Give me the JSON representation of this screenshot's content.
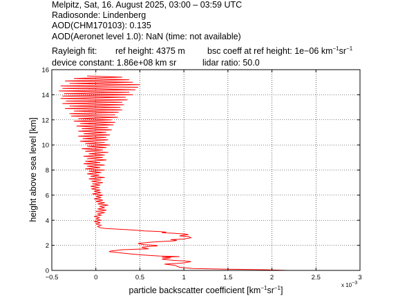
{
  "header": {
    "line1": "Melpitz, Sat, 16. August 2025, 03:00 – 03:59 UTC",
    "line2": "Radiosonde: Lindenberg",
    "line3": "AOD(CHM170103): 0.135",
    "line4": "AOD(Aeronet level 1.0): NaN   (time: not available)",
    "rayleigh_label": "Rayleigh fit:",
    "ref_height": "ref height: 4375 m",
    "bsc_coeff_prefix": "bsc coeff at ref height: 1e−06 km",
    "bsc_coeff_exp1": "−1",
    "bsc_coeff_mid": "sr",
    "bsc_coeff_exp2": "−1",
    "device_constant": "device constant: 1.86e+08 km sr",
    "lidar_ratio": "lidar ratio: 50.0"
  },
  "chart_data": {
    "type": "line",
    "xlabel": "particle backscatter coefficient [km−1sr−1]",
    "xlabel_parts": {
      "prefix": "particle backscatter coefficient [km",
      "exp1": "−1",
      "mid": "sr",
      "exp2": "−1",
      "suffix": "]"
    },
    "ylabel": "height above sea level [km]",
    "x_scale_note": "x 10",
    "x_scale_exp": "−3",
    "xlim": [
      -0.5,
      3
    ],
    "ylim": [
      0,
      16
    ],
    "xticks": [
      -0.5,
      0,
      0.5,
      1,
      1.5,
      2,
      2.5,
      3
    ],
    "xtick_labels": [
      "−0.5",
      "0",
      "0.5",
      "1",
      "1.5",
      "2",
      "2.5",
      "3"
    ],
    "yticks": [
      0,
      2,
      4,
      6,
      8,
      10,
      12,
      14,
      16
    ],
    "ytick_labels": [
      "0",
      "2",
      "4",
      "6",
      "8",
      "10",
      "12",
      "14",
      "16"
    ],
    "grid": true,
    "line_color": "#ff0000",
    "series": [
      {
        "points": [
          [
            2.18,
            0.0
          ],
          [
            1.95,
            0.05
          ],
          [
            1.5,
            0.1
          ],
          [
            1.1,
            0.15
          ],
          [
            0.95,
            0.25
          ],
          [
            0.9,
            0.4
          ],
          [
            0.78,
            0.5
          ],
          [
            0.9,
            0.55
          ],
          [
            1.0,
            0.6
          ],
          [
            1.08,
            0.7
          ],
          [
            1.02,
            0.75
          ],
          [
            0.88,
            0.8
          ],
          [
            0.8,
            0.85
          ],
          [
            0.75,
            0.9
          ],
          [
            0.85,
            1.0
          ],
          [
            0.75,
            1.05
          ],
          [
            0.95,
            1.1
          ],
          [
            0.72,
            1.15
          ],
          [
            0.6,
            1.2
          ],
          [
            0.5,
            1.25
          ],
          [
            0.42,
            1.3
          ],
          [
            0.3,
            1.38
          ],
          [
            0.22,
            1.45
          ],
          [
            0.15,
            1.5
          ],
          [
            0.18,
            1.55
          ],
          [
            0.3,
            1.65
          ],
          [
            0.5,
            1.7
          ],
          [
            0.6,
            1.72
          ],
          [
            0.55,
            1.78
          ],
          [
            0.52,
            1.85
          ],
          [
            0.6,
            1.9
          ],
          [
            0.7,
            1.95
          ],
          [
            0.68,
            2.0
          ],
          [
            0.55,
            2.05
          ],
          [
            0.5,
            2.1
          ],
          [
            0.48,
            2.15
          ],
          [
            0.55,
            2.2
          ],
          [
            0.62,
            2.25
          ],
          [
            0.72,
            2.3
          ],
          [
            0.88,
            2.35
          ],
          [
            0.92,
            2.4
          ],
          [
            0.85,
            2.45
          ],
          [
            1.0,
            2.5
          ],
          [
            1.08,
            2.6
          ],
          [
            1.05,
            2.7
          ],
          [
            0.95,
            2.75
          ],
          [
            0.98,
            2.8
          ],
          [
            1.05,
            2.85
          ],
          [
            1.02,
            2.9
          ],
          [
            0.9,
            2.95
          ],
          [
            0.75,
            3.0
          ],
          [
            0.8,
            3.05
          ],
          [
            0.72,
            3.1
          ],
          [
            0.55,
            3.15
          ],
          [
            0.45,
            3.2
          ],
          [
            0.35,
            3.25
          ],
          [
            0.22,
            3.3
          ],
          [
            0.1,
            3.35
          ],
          [
            0.05,
            3.4
          ],
          [
            0.02,
            3.5
          ],
          [
            0.06,
            3.6
          ],
          [
            0.0,
            3.7
          ],
          [
            0.05,
            3.8
          ],
          [
            -0.02,
            3.9
          ],
          [
            0.06,
            4.0
          ],
          [
            0.0,
            4.1
          ],
          [
            0.04,
            4.2
          ],
          [
            -0.02,
            4.3
          ],
          [
            0.06,
            4.4
          ],
          [
            0.02,
            4.5
          ],
          [
            0.1,
            4.6
          ],
          [
            0.0,
            4.7
          ],
          [
            0.12,
            4.8
          ],
          [
            0.02,
            4.9
          ],
          [
            0.1,
            5.0
          ],
          [
            0.04,
            5.1
          ],
          [
            0.14,
            5.2
          ],
          [
            0.02,
            5.3
          ],
          [
            0.1,
            5.4
          ],
          [
            0.0,
            5.5
          ],
          [
            0.08,
            5.6
          ],
          [
            -0.02,
            5.7
          ],
          [
            0.06,
            5.8
          ],
          [
            0.0,
            5.9
          ],
          [
            0.08,
            6.0
          ],
          [
            -0.04,
            6.1
          ],
          [
            0.06,
            6.2
          ],
          [
            -0.02,
            6.3
          ],
          [
            0.05,
            6.4
          ],
          [
            -0.05,
            6.5
          ],
          [
            0.04,
            6.6
          ],
          [
            -0.06,
            6.7
          ],
          [
            0.05,
            6.8
          ],
          [
            -0.04,
            6.9
          ],
          [
            0.08,
            7.0
          ],
          [
            -0.05,
            7.1
          ],
          [
            0.06,
            7.2
          ],
          [
            -0.08,
            7.3
          ],
          [
            0.1,
            7.4
          ],
          [
            -0.06,
            7.5
          ],
          [
            0.04,
            7.6
          ],
          [
            -0.1,
            7.7
          ],
          [
            0.06,
            7.8
          ],
          [
            -0.08,
            7.9
          ],
          [
            0.1,
            8.0
          ],
          [
            -0.12,
            8.1
          ],
          [
            0.05,
            8.2
          ],
          [
            -0.1,
            8.3
          ],
          [
            0.1,
            8.4
          ],
          [
            -0.14,
            8.5
          ],
          [
            0.05,
            8.6
          ],
          [
            -0.12,
            8.7
          ],
          [
            0.12,
            8.8
          ],
          [
            -0.1,
            8.9
          ],
          [
            0.08,
            9.0
          ],
          [
            -0.14,
            9.1
          ],
          [
            0.1,
            9.2
          ],
          [
            -0.08,
            9.3
          ],
          [
            0.14,
            9.4
          ],
          [
            -0.12,
            9.5
          ],
          [
            0.08,
            9.6
          ],
          [
            -0.16,
            9.7
          ],
          [
            0.12,
            9.8
          ],
          [
            -0.1,
            9.9
          ],
          [
            0.16,
            10.0
          ],
          [
            -0.12,
            10.1
          ],
          [
            0.1,
            10.2
          ],
          [
            -0.18,
            10.3
          ],
          [
            0.14,
            10.4
          ],
          [
            -0.15,
            10.5
          ],
          [
            0.12,
            10.6
          ],
          [
            -0.2,
            10.7
          ],
          [
            0.16,
            10.8
          ],
          [
            -0.14,
            10.9
          ],
          [
            0.12,
            11.0
          ],
          [
            -0.2,
            11.1
          ],
          [
            0.18,
            11.2
          ],
          [
            -0.16,
            11.3
          ],
          [
            0.14,
            11.4
          ],
          [
            -0.22,
            11.5
          ],
          [
            0.2,
            11.6
          ],
          [
            -0.18,
            11.7
          ],
          [
            0.22,
            11.8
          ],
          [
            -0.25,
            11.9
          ],
          [
            0.18,
            12.0
          ],
          [
            -0.2,
            12.1
          ],
          [
            0.25,
            12.2
          ],
          [
            -0.28,
            12.3
          ],
          [
            0.22,
            12.4
          ],
          [
            -0.3,
            12.5
          ],
          [
            0.26,
            12.6
          ],
          [
            -0.25,
            12.7
          ],
          [
            0.3,
            12.8
          ],
          [
            -0.35,
            12.9
          ],
          [
            0.28,
            13.0
          ],
          [
            -0.3,
            13.1
          ],
          [
            0.32,
            13.2
          ],
          [
            -0.38,
            13.3
          ],
          [
            0.3,
            13.4
          ],
          [
            -0.34,
            13.5
          ],
          [
            0.36,
            13.6
          ],
          [
            -0.4,
            13.7
          ],
          [
            0.34,
            13.8
          ],
          [
            -0.38,
            13.9
          ],
          [
            0.42,
            14.0
          ],
          [
            -0.36,
            14.1
          ],
          [
            0.38,
            14.2
          ],
          [
            -0.42,
            14.3
          ],
          [
            0.45,
            14.4
          ],
          [
            -0.38,
            14.5
          ],
          [
            0.48,
            14.6
          ],
          [
            -0.4,
            14.7
          ],
          [
            0.5,
            14.8
          ],
          [
            -0.3,
            14.9
          ],
          [
            0.42,
            15.0
          ],
          [
            -0.35,
            15.1
          ],
          [
            0.38,
            15.2
          ],
          [
            -0.25,
            15.3
          ],
          [
            0.3,
            15.4
          ],
          [
            -0.1,
            15.5
          ]
        ]
      }
    ]
  }
}
